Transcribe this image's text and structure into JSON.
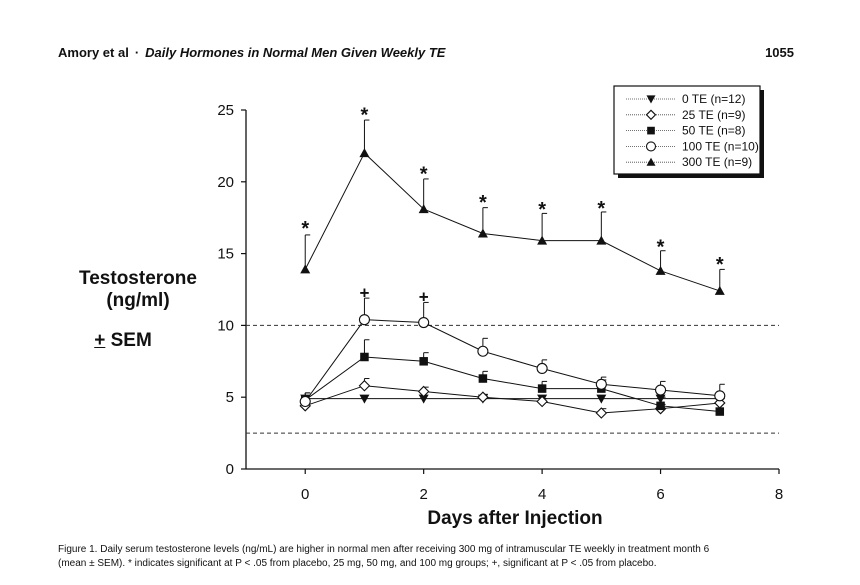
{
  "header": {
    "authors": "Amory et al",
    "separator": "·",
    "title": "Daily Hormones in Normal Men Given Weekly TE",
    "page_number": "1055"
  },
  "figure": {
    "ylabel_line1": "Testosterone",
    "ylabel_line2": "(ng/ml)",
    "ylabel_pm": "+",
    "ylabel_sem": " SEM",
    "xlabel": "Days after Injection"
  },
  "caption": {
    "line1": "Figure 1. Daily serum testosterone levels (ng/mL) are higher in normal men after receiving 300 mg of intramuscular TE weekly in treatment month 6",
    "line2": "(mean ± SEM). * indicates significant at P < .05 from placebo, 25 mg, 50 mg, and 100 mg groups; +, significant at P < .05 from placebo."
  },
  "chart_data": {
    "type": "line",
    "xlabel": "Days after Injection",
    "ylabel": "Testosterone (ng/ml) ± SEM",
    "xlim": [
      -1,
      8
    ],
    "ylim": [
      0,
      25
    ],
    "x_ticks": [
      0,
      2,
      4,
      6,
      8
    ],
    "y_ticks": [
      0,
      5,
      10,
      15,
      20,
      25
    ],
    "x": [
      0,
      1,
      2,
      3,
      4,
      5,
      6,
      7
    ],
    "reference_lines": [
      10,
      2.5
    ],
    "series": [
      {
        "name": "0 TE (n=12)",
        "marker": "triangle-down-filled",
        "values": [
          4.9,
          4.9,
          4.9,
          4.9,
          4.9,
          4.9,
          4.9,
          4.9
        ],
        "sem": [
          0.4,
          0,
          0,
          0,
          0,
          0,
          0,
          0
        ]
      },
      {
        "name": "25 TE (n=9)",
        "marker": "diamond-open",
        "values": [
          4.4,
          5.8,
          5.4,
          5.0,
          4.7,
          3.9,
          4.2,
          4.6
        ],
        "sem": [
          0.5,
          0.5,
          0.3,
          0.2,
          0.2,
          0.3,
          0.3,
          0.3
        ]
      },
      {
        "name": "50 TE (n=8)",
        "marker": "square-filled",
        "values": [
          4.8,
          7.8,
          7.5,
          6.3,
          5.6,
          5.6,
          4.4,
          4.0
        ],
        "sem": [
          0.3,
          1.2,
          0.6,
          0.5,
          0.5,
          0.6,
          0.6,
          0
        ]
      },
      {
        "name": "100 TE (n=10)",
        "marker": "circle-open",
        "values": [
          4.7,
          10.4,
          10.2,
          8.2,
          7.0,
          5.9,
          5.5,
          5.1
        ],
        "sem": [
          0.6,
          1.5,
          1.4,
          0.9,
          0.6,
          0.5,
          0.6,
          0.8
        ]
      },
      {
        "name": "300 TE (n=9)",
        "marker": "triangle-up-filled",
        "values": [
          13.9,
          22.0,
          18.1,
          16.4,
          15.9,
          15.9,
          13.8,
          12.4
        ],
        "sem": [
          2.4,
          2.3,
          2.1,
          1.8,
          1.9,
          2.0,
          1.4,
          1.5
        ]
      }
    ],
    "annotations": [
      {
        "text": "*",
        "x": 0,
        "y": 17.0
      },
      {
        "text": "*",
        "x": 1,
        "y": 24.9
      },
      {
        "text": "*",
        "x": 2,
        "y": 20.8
      },
      {
        "text": "*",
        "x": 3,
        "y": 18.8
      },
      {
        "text": "*",
        "x": 4,
        "y": 18.3
      },
      {
        "text": "*",
        "x": 5,
        "y": 18.4
      },
      {
        "text": "*",
        "x": 6,
        "y": 15.7
      },
      {
        "text": "*",
        "x": 7,
        "y": 14.5
      },
      {
        "text": "+",
        "x": 1,
        "y": 12.3
      },
      {
        "text": "+",
        "x": 2,
        "y": 12.0
      }
    ],
    "legend_position": "top-right"
  }
}
